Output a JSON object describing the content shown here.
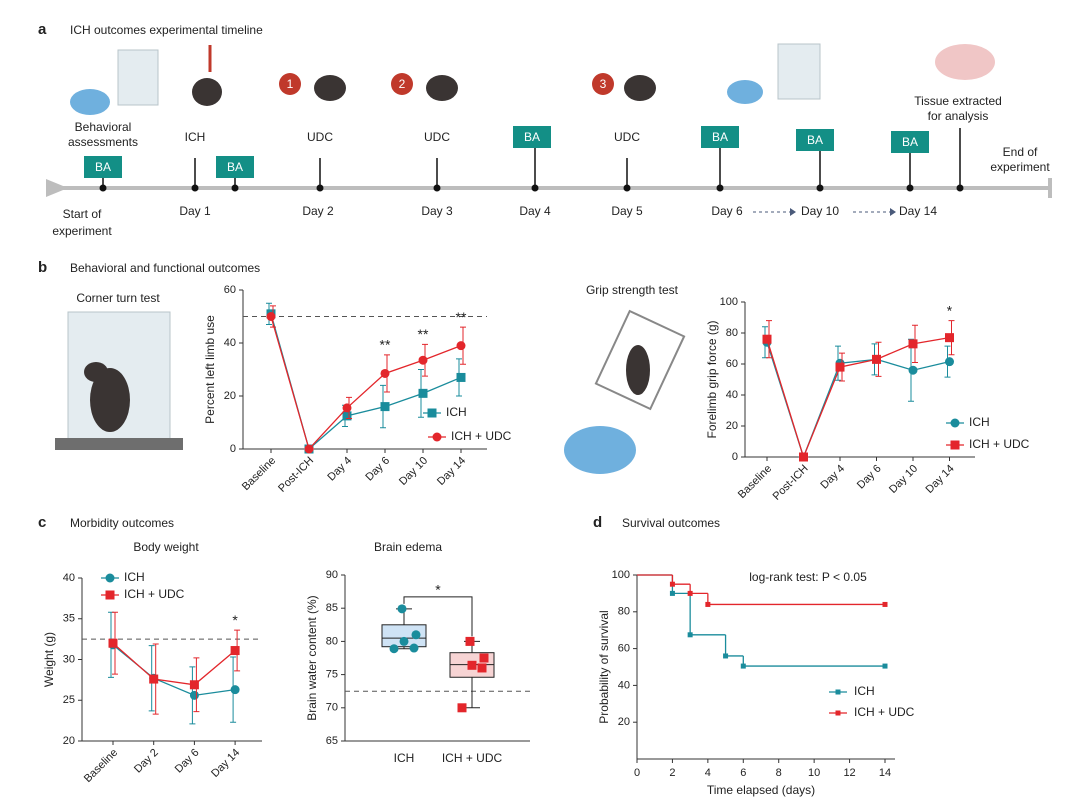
{
  "figure": {
    "panels": [
      "a",
      "b",
      "c",
      "d"
    ]
  },
  "timeline": {
    "title": "ICH outcomes experimental timeline",
    "start": [
      "Start of",
      "experiment"
    ],
    "end": [
      "End of",
      "experiment"
    ],
    "assessments": [
      "Behavioral",
      "assessments"
    ],
    "tissue": [
      "Tissue extracted",
      "for analysis"
    ],
    "events": [
      "ICH",
      "UDC",
      "UDC",
      "UDC"
    ],
    "doses": [
      1,
      2,
      3
    ],
    "days": [
      "Day 1",
      "Day 2",
      "Day 3",
      "Day 4",
      "Day 5",
      "Day 6",
      "Day 10",
      "Day 14"
    ],
    "markers": [
      "BA",
      "BA",
      "BA",
      "BA",
      "BA",
      "BA"
    ]
  },
  "panel_b": {
    "title": "Behavioral and functional outcomes",
    "corner": "Corner turn test",
    "grip": "Grip strength test"
  },
  "panel_c": {
    "title": "Morbidity outcomes"
  },
  "panel_d": {
    "title": "Survival outcomes"
  },
  "chart_data": [
    {
      "type": "line",
      "ylabel": "Percent left limb use",
      "categories": [
        "Baseline",
        "Post-ICH",
        "Day 4",
        "Day 6",
        "Day 10",
        "Day 14"
      ],
      "ylim": [
        0,
        60
      ],
      "yticks": [
        0,
        20,
        40,
        60
      ],
      "reference_line": 50,
      "legend": "lower right",
      "series": [
        {
          "name": "ICH",
          "color": "#1a8c9c",
          "marker": "square",
          "values": [
            51,
            0,
            12.5,
            16,
            21,
            27
          ],
          "errors": [
            4,
            0,
            4,
            8,
            9,
            7
          ]
        },
        {
          "name": "ICH + UDC",
          "color": "#e3262b",
          "marker": "circle",
          "values": [
            50,
            0,
            15.5,
            28.5,
            33.5,
            39
          ],
          "errors": [
            4,
            0,
            4,
            7,
            6,
            7
          ]
        }
      ],
      "annotations": [
        null,
        null,
        null,
        "**",
        "**",
        "**"
      ]
    },
    {
      "type": "line",
      "ylabel": "Forelimb grip force (g)",
      "categories": [
        "Baseline",
        "Post-ICH",
        "Day 4",
        "Day 6",
        "Day 10",
        "Day 14"
      ],
      "ylim": [
        0,
        100
      ],
      "yticks": [
        0,
        20,
        40,
        60,
        80,
        100
      ],
      "legend": "lower right",
      "series": [
        {
          "name": "ICH",
          "color": "#1a8c9c",
          "marker": "circle",
          "values": [
            74,
            0,
            60.5,
            63,
            56,
            61.5
          ],
          "errors": [
            10,
            0,
            11,
            10,
            20,
            10
          ]
        },
        {
          "name": "ICH + UDC",
          "color": "#e3262b",
          "marker": "square",
          "values": [
            76,
            0,
            58,
            63,
            73,
            77
          ],
          "errors": [
            12,
            0,
            9,
            11,
            12,
            11
          ]
        }
      ],
      "annotations": [
        null,
        null,
        null,
        null,
        null,
        "*"
      ]
    },
    {
      "type": "line",
      "title": "Body weight",
      "ylabel": "Weight (g)",
      "categories": [
        "Baseline",
        "Day 2",
        "Day 6",
        "Day 14"
      ],
      "ylim": [
        20,
        40
      ],
      "yticks": [
        20,
        25,
        30,
        35,
        40
      ],
      "reference_line": 32.5,
      "legend": "upper left",
      "series": [
        {
          "name": "ICH",
          "color": "#1a8c9c",
          "marker": "circle",
          "values": [
            31.8,
            27.7,
            25.6,
            26.3
          ],
          "errors": [
            4,
            4,
            3.5,
            4
          ]
        },
        {
          "name": "ICH + UDC",
          "color": "#e3262b",
          "marker": "square",
          "values": [
            32,
            27.6,
            26.9,
            31.1
          ],
          "errors": [
            3.8,
            4.3,
            3.3,
            2.5
          ]
        }
      ],
      "annotations": [
        null,
        null,
        null,
        "*"
      ]
    },
    {
      "type": "box",
      "title": "Brain edema",
      "ylabel": "Brain water content (%)",
      "categories": [
        "ICH",
        "ICH + UDC"
      ],
      "ylim": [
        65,
        90
      ],
      "yticks": [
        65,
        70,
        75,
        80,
        85,
        90
      ],
      "reference_line": 72.5,
      "significance": "*",
      "boxes": [
        {
          "color": "#1a8c9c",
          "fill": "#cfe3f5",
          "marker": "circle",
          "min": 78.9,
          "q1": 79.2,
          "median": 80.5,
          "q3": 82.5,
          "max": 84.9,
          "points": [
            78.9,
            79,
            80,
            81,
            84.9
          ]
        },
        {
          "color": "#e3262b",
          "fill": "#f7d4d4",
          "marker": "square",
          "min": 70,
          "q1": 74.6,
          "median": 76.5,
          "q3": 78.3,
          "max": 80,
          "points": [
            70,
            76,
            76.4,
            77.5,
            80
          ]
        }
      ]
    },
    {
      "type": "step",
      "annotation": "log-rank test: P < 0.05",
      "xlabel": "Time elapsed (days)",
      "ylabel": "Probability of survival",
      "xlim": [
        0,
        14
      ],
      "xticks": [
        0,
        2,
        4,
        6,
        8,
        10,
        12,
        14
      ],
      "ylim": [
        0,
        100
      ],
      "yticks": [
        20,
        40,
        60,
        80,
        100
      ],
      "legend": "lower right",
      "series": [
        {
          "name": "ICH",
          "color": "#1a8c9c",
          "x": [
            0,
            2,
            3,
            5,
            6,
            14
          ],
          "values": [
            100,
            90,
            67.5,
            56,
            50.5,
            50.5
          ]
        },
        {
          "name": "ICH + UDC",
          "color": "#e3262b",
          "x": [
            0,
            2,
            3,
            4,
            14
          ],
          "values": [
            100,
            95,
            90,
            84,
            84
          ]
        }
      ]
    }
  ]
}
